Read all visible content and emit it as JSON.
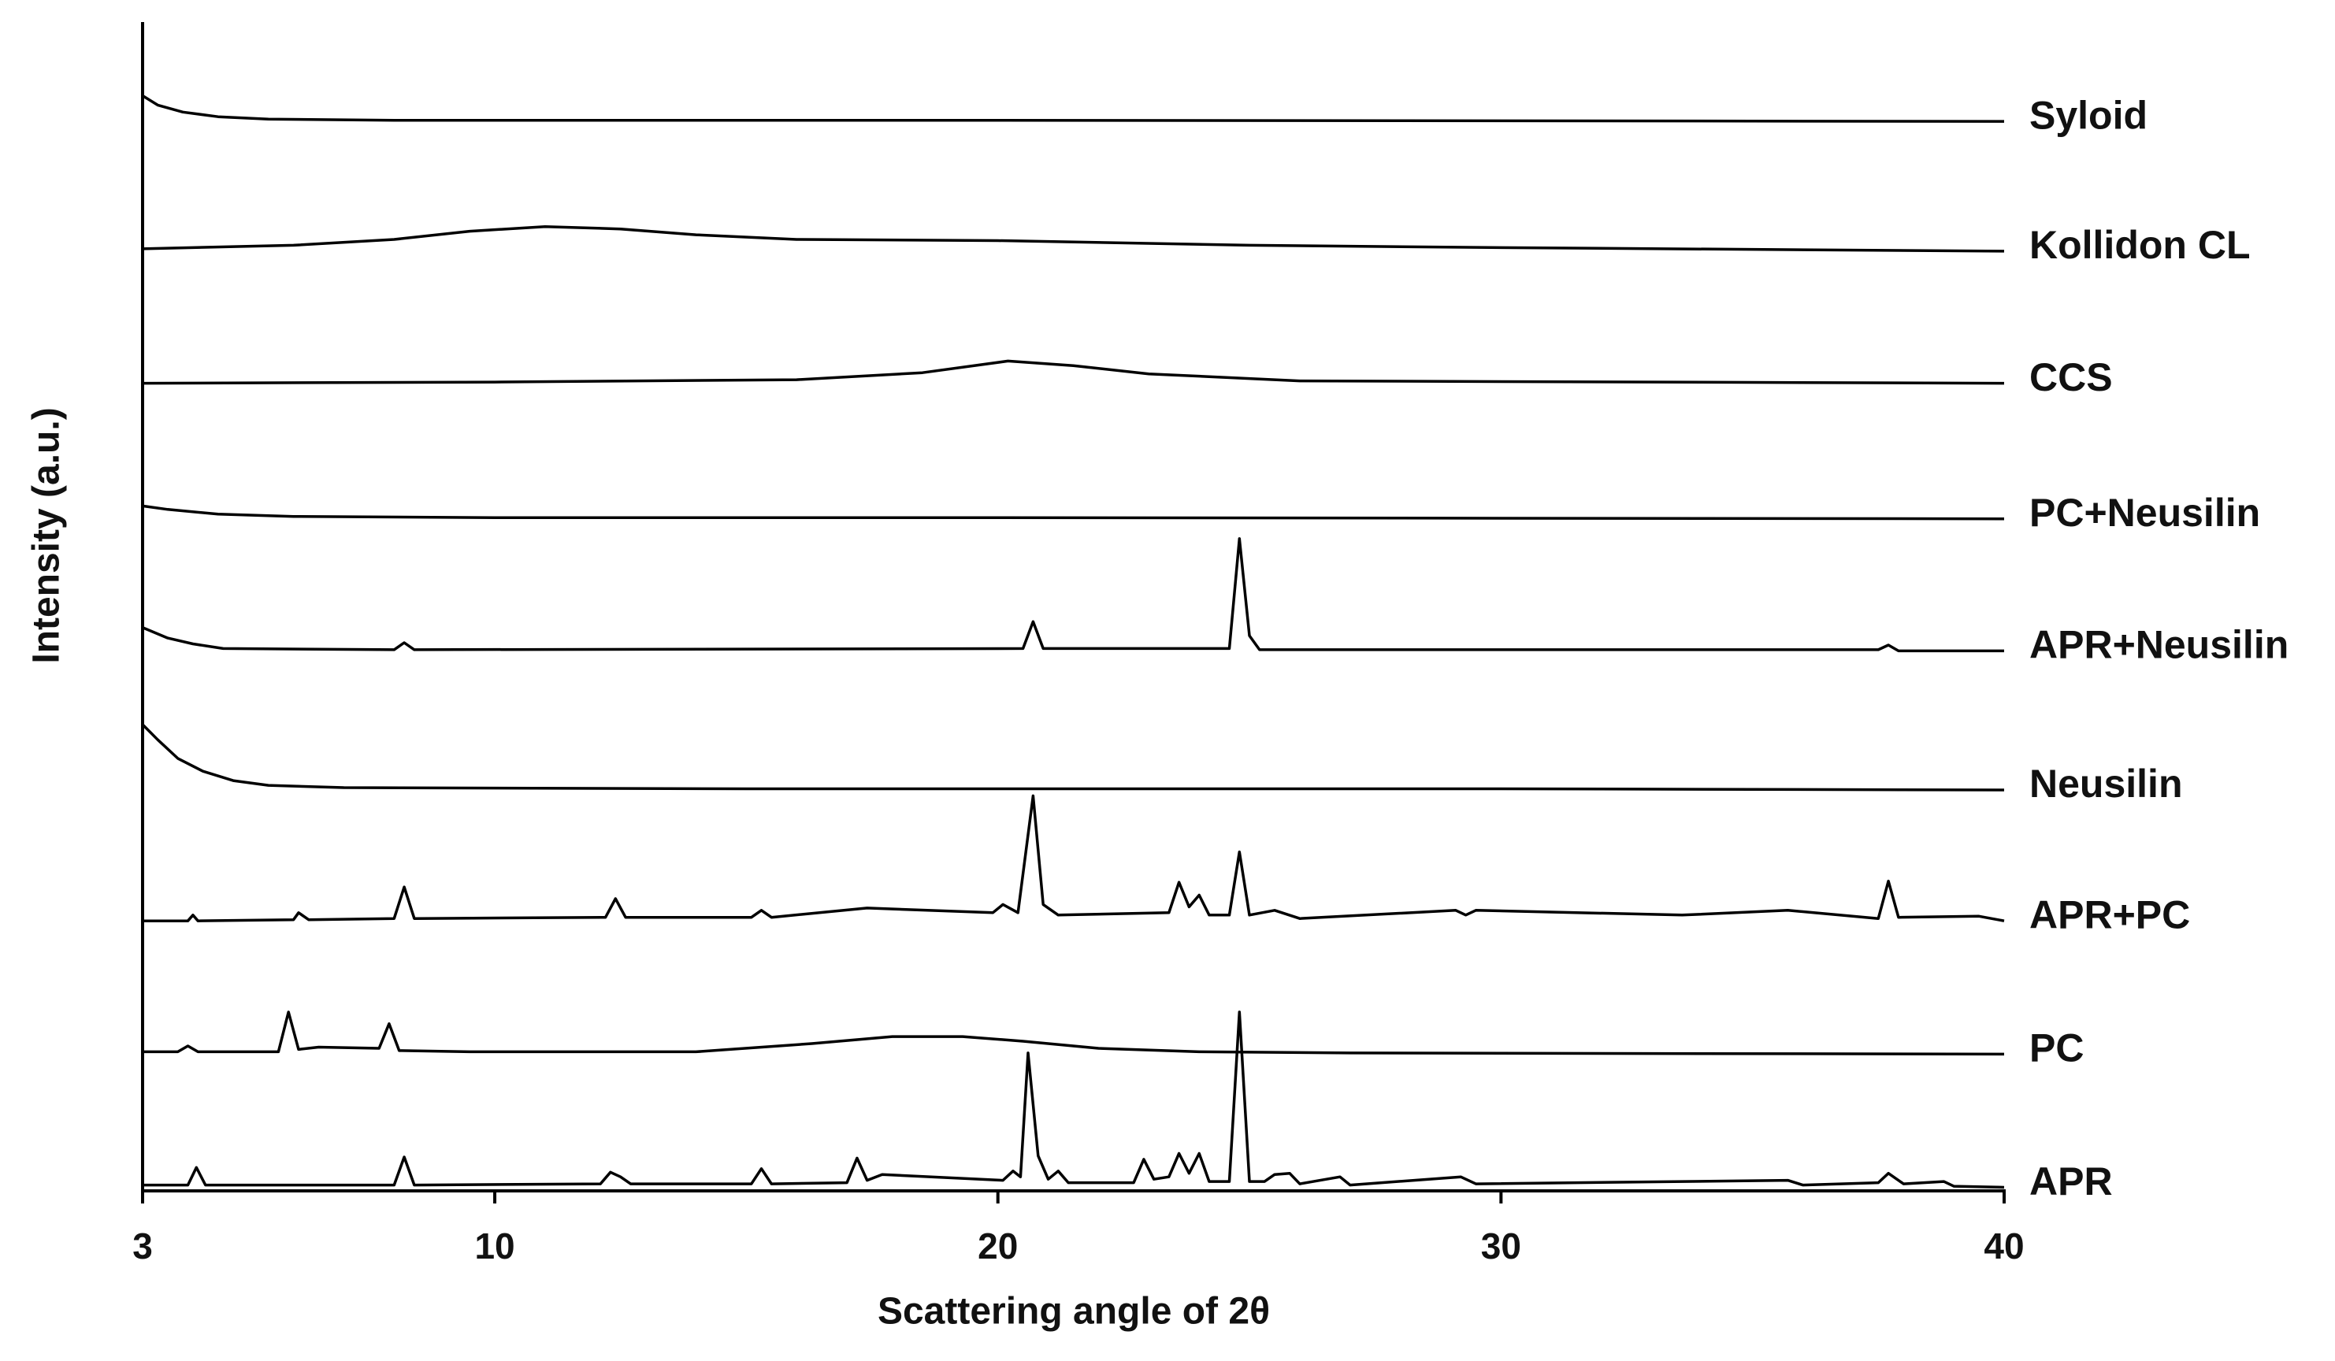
{
  "chart_data": {
    "type": "line",
    "x_label": "Scattering angle of 2θ",
    "y_label": "Intensity (a.u.)",
    "xlim": [
      3,
      40
    ],
    "xticks": [
      3,
      10,
      20,
      30,
      40
    ],
    "ylim": [
      0,
      100
    ],
    "color": "#000000",
    "series": [
      {
        "name": "APR",
        "x": [
          3,
          3.9,
          4.07,
          4.25,
          8.0,
          8.2,
          8.4,
          12.1,
          12.3,
          12.5,
          12.7,
          15.1,
          15.3,
          15.5,
          17.0,
          17.2,
          17.4,
          17.7,
          20.1,
          20.3,
          20.45,
          20.6,
          20.8,
          21.0,
          21.2,
          21.4,
          22.7,
          22.9,
          23.1,
          23.4,
          23.6,
          23.8,
          24.0,
          24.2,
          24.6,
          24.8,
          25.0,
          25.3,
          25.5,
          25.8,
          26.0,
          26.8,
          27.0,
          29.2,
          29.5,
          35.7,
          36.0,
          37.5,
          37.7,
          38.0,
          38.8,
          39.0,
          40
        ],
        "values": [
          0.5,
          0.5,
          2.0,
          0.5,
          0.5,
          2.9,
          0.5,
          0.6,
          1.6,
          1.2,
          0.6,
          0.6,
          1.9,
          0.6,
          0.7,
          2.8,
          0.9,
          1.4,
          0.9,
          1.7,
          1.2,
          11.8,
          3,
          1,
          1.7,
          0.7,
          0.7,
          2.7,
          1.0,
          1.2,
          3.2,
          1.5,
          3.2,
          0.8,
          0.8,
          15.3,
          0.8,
          0.8,
          1.4,
          1.5,
          0.6,
          1.2,
          0.5,
          1.2,
          0.6,
          0.9,
          0.5,
          0.7,
          1.5,
          0.6,
          0.8,
          0.4,
          0.3
        ]
      },
      {
        "name": "PC",
        "x": [
          3,
          3.7,
          3.9,
          4.1,
          5.7,
          5.9,
          6.1,
          6.5,
          7.7,
          7.9,
          8.1,
          9.5,
          14,
          16.3,
          17.9,
          19.3,
          20.5,
          22,
          24,
          27,
          40
        ],
        "values": [
          11.9,
          11.9,
          12.4,
          11.9,
          11.9,
          15.3,
          12.1,
          12.3,
          12.2,
          14.3,
          12.0,
          11.9,
          11.9,
          12.6,
          13.2,
          13.2,
          12.8,
          12.2,
          11.9,
          11.8,
          11.7
        ]
      },
      {
        "name": "APR+PC",
        "x": [
          3,
          3.9,
          4.0,
          4.1,
          6.0,
          6.1,
          6.3,
          8.0,
          8.2,
          8.4,
          12.2,
          12.4,
          12.6,
          15.1,
          15.3,
          15.5,
          17.4,
          19.9,
          20.1,
          20.4,
          20.7,
          20.9,
          21.2,
          23.4,
          23.6,
          23.8,
          24.0,
          24.2,
          24.6,
          24.8,
          25.0,
          25.5,
          26,
          29.1,
          29.3,
          29.5,
          33.6,
          35.7,
          37.5,
          37.7,
          37.9,
          39.5,
          40
        ],
        "values": [
          23.1,
          23.1,
          23.6,
          23.1,
          23.2,
          23.8,
          23.2,
          23.3,
          26.0,
          23.3,
          23.4,
          25.0,
          23.4,
          23.4,
          24.0,
          23.4,
          24.2,
          23.8,
          24.5,
          23.8,
          33.8,
          24.5,
          23.6,
          23.8,
          26.4,
          24.3,
          25.3,
          23.6,
          23.6,
          29.0,
          23.6,
          24.0,
          23.3,
          24.0,
          23.6,
          24.0,
          23.6,
          24.0,
          23.3,
          26.5,
          23.4,
          23.5,
          23.1
        ]
      },
      {
        "name": "Neusilin",
        "x": [
          3,
          3.3,
          3.7,
          4.2,
          4.8,
          5.5,
          7,
          15,
          30,
          40
        ],
        "values": [
          39.9,
          38.6,
          37.0,
          35.9,
          35.1,
          34.7,
          34.5,
          34.4,
          34.4,
          34.3
        ]
      },
      {
        "name": "APR+Neusilin",
        "x": [
          3,
          3.5,
          4,
          4.6,
          8.0,
          8.2,
          8.4,
          20.5,
          20.7,
          20.9,
          24.6,
          24.8,
          25.0,
          25.2,
          37.5,
          37.7,
          37.9,
          40
        ],
        "values": [
          48.2,
          47.3,
          46.8,
          46.4,
          46.3,
          46.9,
          46.3,
          46.4,
          48.7,
          46.4,
          46.4,
          55.8,
          47.5,
          46.3,
          46.3,
          46.7,
          46.2,
          46.2
        ]
      },
      {
        "name": "PC+Neusilin",
        "x": [
          3,
          3.5,
          4.5,
          6,
          10,
          20,
          40
        ],
        "values": [
          58.6,
          58.3,
          57.9,
          57.7,
          57.6,
          57.6,
          57.5
        ]
      },
      {
        "name": "CCS",
        "x": [
          3,
          10,
          16,
          18.5,
          20.2,
          21.5,
          23,
          26,
          40
        ],
        "values": [
          69.1,
          69.2,
          69.4,
          70.0,
          71.0,
          70.6,
          69.9,
          69.3,
          69.1
        ]
      },
      {
        "name": "Kollidon CL",
        "x": [
          3,
          6,
          8,
          9.5,
          11,
          12.5,
          14,
          16,
          20,
          25,
          30,
          40
        ],
        "values": [
          80.6,
          80.9,
          81.4,
          82.1,
          82.5,
          82.3,
          81.8,
          81.4,
          81.3,
          80.9,
          80.7,
          80.4
        ]
      },
      {
        "name": "Syloid",
        "x": [
          3,
          3.3,
          3.8,
          4.5,
          5.5,
          8,
          20,
          40
        ],
        "values": [
          93.7,
          92.9,
          92.3,
          91.9,
          91.7,
          91.6,
          91.6,
          91.5
        ]
      }
    ]
  }
}
